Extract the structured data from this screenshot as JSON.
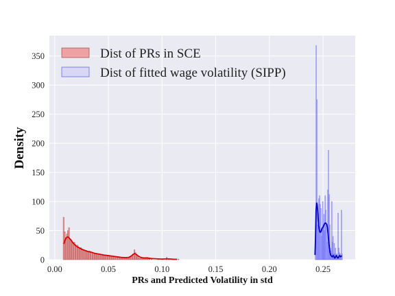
{
  "chart_data": {
    "type": "histogram",
    "xlabel": "PRs and Predicted Volatility in std",
    "ylabel": "Density",
    "xlim": [
      -0.005,
      0.28
    ],
    "ylim": [
      0,
      385
    ],
    "xticks": [
      0.0,
      0.05,
      0.1,
      0.15,
      0.2,
      0.25
    ],
    "xtick_labels": [
      "0.00",
      "0.05",
      "0.10",
      "0.15",
      "0.20",
      "0.25"
    ],
    "yticks": [
      0,
      50,
      100,
      150,
      200,
      250,
      300,
      350
    ],
    "ytick_labels": [
      "0",
      "50",
      "100",
      "150",
      "200",
      "250",
      "300",
      "350"
    ],
    "grid": true,
    "legend_position": "top-left",
    "series": [
      {
        "name": "Dist of PRs in SCE",
        "fill_color": "#f08080",
        "edge_color": "#8b3a3a",
        "kde_color": "#dd0000",
        "bins": [
          [
            0.0078,
            73
          ],
          [
            0.0088,
            48
          ],
          [
            0.0098,
            38
          ],
          [
            0.0108,
            44
          ],
          [
            0.0118,
            50
          ],
          [
            0.0128,
            55
          ],
          [
            0.0138,
            36
          ],
          [
            0.0148,
            34
          ],
          [
            0.0158,
            31
          ],
          [
            0.0168,
            28
          ],
          [
            0.0178,
            30
          ],
          [
            0.0188,
            26
          ],
          [
            0.0198,
            24
          ],
          [
            0.0208,
            25
          ],
          [
            0.0218,
            22
          ],
          [
            0.0228,
            20
          ],
          [
            0.0238,
            21
          ],
          [
            0.0248,
            19
          ],
          [
            0.0258,
            18
          ],
          [
            0.0268,
            17
          ],
          [
            0.0278,
            16
          ],
          [
            0.0288,
            16
          ],
          [
            0.0298,
            15
          ],
          [
            0.0308,
            14
          ],
          [
            0.0318,
            15
          ],
          [
            0.0328,
            13
          ],
          [
            0.0338,
            13
          ],
          [
            0.0348,
            12
          ],
          [
            0.0358,
            12
          ],
          [
            0.0368,
            11
          ],
          [
            0.0378,
            11
          ],
          [
            0.0388,
            10
          ],
          [
            0.0398,
            10
          ],
          [
            0.0408,
            10
          ],
          [
            0.0418,
            9
          ],
          [
            0.0428,
            9
          ],
          [
            0.0438,
            9
          ],
          [
            0.0448,
            8
          ],
          [
            0.0458,
            8
          ],
          [
            0.0468,
            8
          ],
          [
            0.0478,
            7
          ],
          [
            0.0488,
            8
          ],
          [
            0.0498,
            7
          ],
          [
            0.0508,
            6
          ],
          [
            0.0518,
            6
          ],
          [
            0.0528,
            6
          ],
          [
            0.0538,
            5
          ],
          [
            0.0548,
            5
          ],
          [
            0.0558,
            5
          ],
          [
            0.0568,
            5
          ],
          [
            0.0578,
            4
          ],
          [
            0.0588,
            4
          ],
          [
            0.0598,
            4
          ],
          [
            0.0608,
            4
          ],
          [
            0.0618,
            3
          ],
          [
            0.0628,
            3
          ],
          [
            0.0638,
            3
          ],
          [
            0.0648,
            3
          ],
          [
            0.0658,
            3
          ],
          [
            0.0668,
            3
          ],
          [
            0.0678,
            2
          ],
          [
            0.0688,
            3
          ],
          [
            0.0698,
            4
          ],
          [
            0.0708,
            5
          ],
          [
            0.0718,
            7
          ],
          [
            0.0728,
            10
          ],
          [
            0.0738,
            17
          ],
          [
            0.0748,
            12
          ],
          [
            0.0758,
            8
          ],
          [
            0.0768,
            5
          ],
          [
            0.0778,
            3
          ],
          [
            0.0788,
            2
          ],
          [
            0.0798,
            2
          ],
          [
            0.0808,
            3
          ],
          [
            0.0818,
            2
          ],
          [
            0.0828,
            2
          ],
          [
            0.0838,
            3
          ],
          [
            0.0848,
            2
          ],
          [
            0.0858,
            4
          ],
          [
            0.0868,
            2
          ],
          [
            0.0878,
            1
          ],
          [
            0.0898,
            1
          ],
          [
            0.0958,
            1
          ],
          [
            0.0998,
            1
          ],
          [
            0.1038,
            4
          ],
          [
            0.1058,
            1
          ],
          [
            0.1098,
            1
          ],
          [
            0.1148,
            1
          ]
        ],
        "kde": [
          [
            0.0085,
            27
          ],
          [
            0.0095,
            33
          ],
          [
            0.0105,
            37
          ],
          [
            0.0115,
            39
          ],
          [
            0.0125,
            39
          ],
          [
            0.0135,
            37
          ],
          [
            0.015,
            34
          ],
          [
            0.017,
            29
          ],
          [
            0.019,
            25
          ],
          [
            0.021,
            22
          ],
          [
            0.023,
            20
          ],
          [
            0.025,
            18
          ],
          [
            0.028,
            16
          ],
          [
            0.031,
            14
          ],
          [
            0.034,
            13
          ],
          [
            0.037,
            11
          ],
          [
            0.04,
            10
          ],
          [
            0.043,
            9
          ],
          [
            0.046,
            8
          ],
          [
            0.05,
            7
          ],
          [
            0.054,
            6
          ],
          [
            0.058,
            5
          ],
          [
            0.062,
            4
          ],
          [
            0.066,
            3.5
          ],
          [
            0.069,
            4
          ],
          [
            0.071,
            6
          ],
          [
            0.073,
            9
          ],
          [
            0.0745,
            10.5
          ],
          [
            0.076,
            9
          ],
          [
            0.078,
            6
          ],
          [
            0.08,
            4
          ],
          [
            0.083,
            3
          ],
          [
            0.086,
            3
          ],
          [
            0.09,
            2
          ],
          [
            0.095,
            1.5
          ],
          [
            0.1,
            1
          ],
          [
            0.105,
            1.5
          ],
          [
            0.11,
            0.8
          ],
          [
            0.114,
            0.5
          ]
        ]
      },
      {
        "name": "Dist of fitted wage volatility (SIPP)",
        "fill_color": "#b8b8f8",
        "edge_color": "#4040ff",
        "kde_color": "#0000cc",
        "bins": [
          [
            0.2428,
            12
          ],
          [
            0.2434,
            368
          ],
          [
            0.244,
            275
          ],
          [
            0.2446,
            60
          ],
          [
            0.2452,
            80
          ],
          [
            0.2458,
            105
          ],
          [
            0.2464,
            110
          ],
          [
            0.247,
            95
          ],
          [
            0.2476,
            88
          ],
          [
            0.2482,
            40
          ],
          [
            0.2488,
            50
          ],
          [
            0.2494,
            100
          ],
          [
            0.25,
            60
          ],
          [
            0.2506,
            78
          ],
          [
            0.2512,
            50
          ],
          [
            0.2518,
            110
          ],
          [
            0.2524,
            85
          ],
          [
            0.253,
            60
          ],
          [
            0.2536,
            30
          ],
          [
            0.2542,
            120
          ],
          [
            0.2548,
            188
          ],
          [
            0.2554,
            112
          ],
          [
            0.256,
            60
          ],
          [
            0.2566,
            20
          ],
          [
            0.2572,
            15
          ],
          [
            0.2578,
            100
          ],
          [
            0.2584,
            30
          ],
          [
            0.259,
            40
          ],
          [
            0.2596,
            10
          ],
          [
            0.2602,
            28
          ],
          [
            0.2608,
            10
          ],
          [
            0.2614,
            20
          ],
          [
            0.262,
            8
          ],
          [
            0.2626,
            10
          ],
          [
            0.2632,
            5
          ],
          [
            0.2638,
            80
          ],
          [
            0.2644,
            20
          ],
          [
            0.265,
            12
          ],
          [
            0.2656,
            10
          ],
          [
            0.2662,
            5
          ],
          [
            0.2668,
            85
          ],
          [
            0.2674,
            10
          ]
        ],
        "kde": [
          [
            0.2425,
            8
          ],
          [
            0.243,
            40
          ],
          [
            0.2435,
            85
          ],
          [
            0.244,
            98
          ],
          [
            0.2445,
            95
          ],
          [
            0.245,
            85
          ],
          [
            0.2455,
            70
          ],
          [
            0.246,
            58
          ],
          [
            0.2465,
            52
          ],
          [
            0.247,
            48
          ],
          [
            0.2475,
            47
          ],
          [
            0.248,
            48
          ],
          [
            0.2485,
            50
          ],
          [
            0.249,
            53
          ],
          [
            0.2495,
            55
          ],
          [
            0.25,
            56
          ],
          [
            0.2505,
            58
          ],
          [
            0.251,
            60
          ],
          [
            0.2515,
            62
          ],
          [
            0.252,
            63
          ],
          [
            0.2525,
            63
          ],
          [
            0.253,
            62
          ],
          [
            0.2535,
            60
          ],
          [
            0.254,
            56
          ],
          [
            0.2545,
            48
          ],
          [
            0.255,
            38
          ],
          [
            0.2555,
            28
          ],
          [
            0.256,
            20
          ],
          [
            0.2565,
            13
          ],
          [
            0.257,
            9
          ],
          [
            0.2575,
            7
          ],
          [
            0.258,
            6
          ],
          [
            0.2585,
            5
          ],
          [
            0.259,
            6
          ],
          [
            0.2595,
            7
          ],
          [
            0.26,
            6
          ],
          [
            0.2605,
            4
          ],
          [
            0.261,
            3
          ],
          [
            0.2615,
            4
          ],
          [
            0.262,
            6
          ],
          [
            0.2625,
            7
          ],
          [
            0.263,
            5
          ],
          [
            0.2635,
            3
          ],
          [
            0.264,
            3
          ],
          [
            0.2645,
            4
          ],
          [
            0.265,
            6
          ],
          [
            0.2655,
            7
          ],
          [
            0.266,
            6
          ],
          [
            0.2665,
            5
          ],
          [
            0.267,
            6
          ],
          [
            0.2675,
            7
          ]
        ]
      }
    ]
  }
}
